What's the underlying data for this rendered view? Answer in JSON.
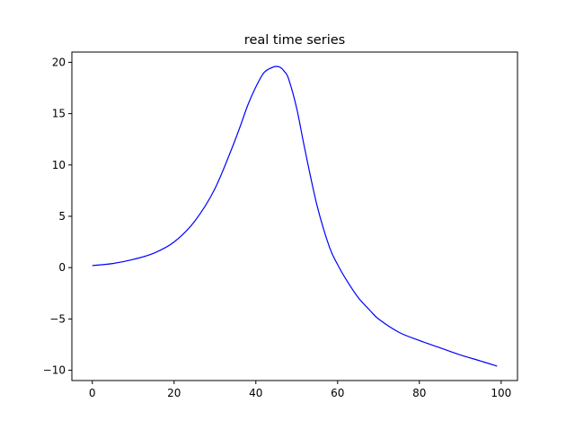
{
  "chart_data": {
    "type": "line",
    "title": "real time series",
    "xlabel": "",
    "ylabel": "",
    "xlim": [
      -5,
      104
    ],
    "ylim": [
      -11,
      21
    ],
    "x_ticks": [
      0,
      20,
      40,
      60,
      80,
      100
    ],
    "y_ticks": [
      -10,
      -5,
      0,
      5,
      10,
      15,
      20
    ],
    "grid": false,
    "line_color": "#0000ff",
    "series": [
      {
        "x": [
          0,
          5,
          10,
          15,
          20,
          25,
          30,
          35,
          38,
          40,
          42,
          44,
          45,
          46,
          47,
          48,
          50,
          52,
          55,
          58,
          60,
          62,
          65,
          68,
          70,
          75,
          80,
          85,
          90,
          95,
          99
        ],
        "y": [
          0.2,
          0.4,
          0.8,
          1.4,
          2.5,
          4.5,
          7.7,
          12.5,
          15.8,
          17.6,
          19.0,
          19.5,
          19.6,
          19.5,
          19.1,
          18.4,
          15.5,
          11.5,
          6.0,
          2.0,
          0.3,
          -1.1,
          -2.9,
          -4.2,
          -5.0,
          -6.3,
          -7.1,
          -7.8,
          -8.5,
          -9.1,
          -9.6
        ]
      }
    ]
  }
}
